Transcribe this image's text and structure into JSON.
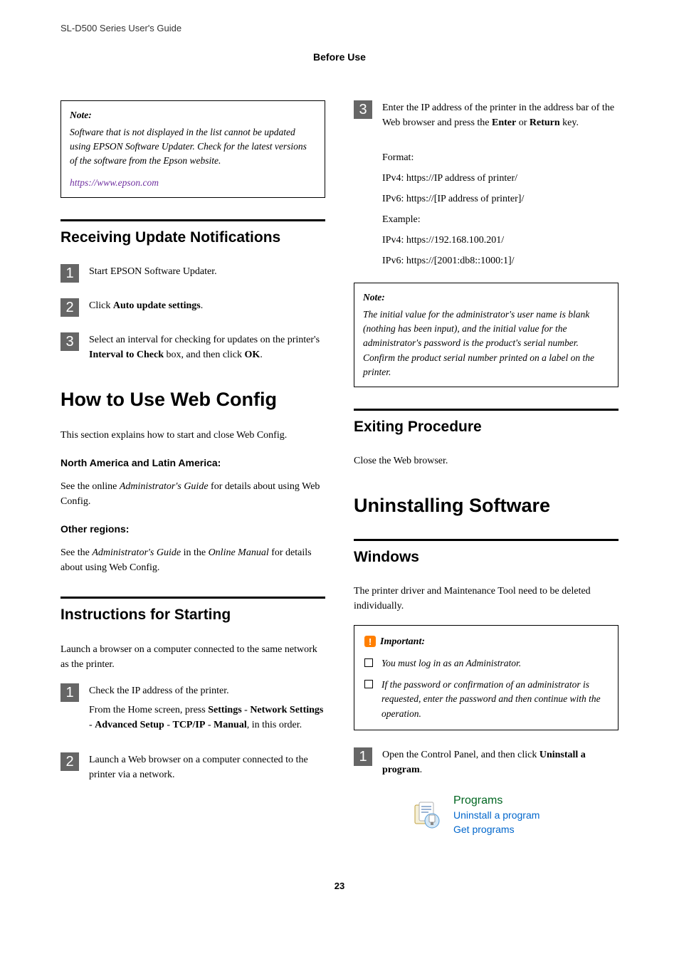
{
  "header": {
    "left": "SL-D500 Series     User's Guide",
    "section": "Before Use"
  },
  "left_col": {
    "note1": {
      "title": "Note:",
      "body": "Software that is not displayed in the list cannot be updated using EPSON Software Updater. Check for the latest versions of the software from the Epson website.",
      "link": "https://www.epson.com"
    },
    "h2_receiving": "Receiving Update Notifications",
    "steps_receiving": [
      {
        "num": "1",
        "html": "Start EPSON Software Updater."
      },
      {
        "num": "2",
        "html": "Click <strong>Auto update settings</strong>."
      },
      {
        "num": "3",
        "html": "Select an interval for checking for updates on the printer's <strong>Interval to Check</strong> box, and then click <strong>OK</strong>."
      }
    ],
    "h1_webconfig": "How to Use Web Config",
    "para_intro": "This section explains how to start and close Web Config.",
    "na_title": "North America and Latin America:",
    "na_body_pre": "See the online ",
    "na_body_em": "Administrator's Guide",
    "na_body_post": " for details about using Web Config.",
    "other_title": "Other regions:",
    "other_body_pre": "See the ",
    "other_body_em1": "Administrator's Guide",
    "other_body_mid": " in the ",
    "other_body_em2": "Online Manual",
    "other_body_post": " for details about using Web Config.",
    "h2_instructions": "Instructions for Starting",
    "para_launch": "Launch a browser on a computer connected to the same network as the printer.",
    "steps_starting": [
      {
        "num": "1",
        "p1": "Check the IP address of the printer.",
        "p2_html": "From the Home screen, press <strong>Settings</strong> - <strong>Network Settings</strong> - <strong>Advanced Setup</strong> - <strong>TCP/IP</strong> - <strong>Manual</strong>, in this order."
      },
      {
        "num": "2",
        "p1": "Launch a Web browser on a computer connected to the printer via a network."
      }
    ]
  },
  "right_col": {
    "step3": {
      "num": "3",
      "p1_html": "Enter the IP address of the printer in the address bar of the Web browser and press the <strong>Enter</strong> or <strong>Return</strong> key.",
      "format_label": "Format:",
      "ipv4_fmt": "IPv4: https://IP address of printer/",
      "ipv6_fmt": "IPv6: https://[IP address of printer]/",
      "example_label": "Example:",
      "ipv4_ex": "IPv4: https://192.168.100.201/",
      "ipv6_ex": "IPv6: https://[2001:db8::1000:1]/"
    },
    "note2": {
      "title": "Note:",
      "body": "The initial value for the administrator's user name is blank (nothing has been input), and the initial value for the administrator's password is the product's serial number. Confirm the product serial number printed on a label on the printer."
    },
    "h2_exiting": "Exiting Procedure",
    "para_close": "Close the Web browser.",
    "h1_uninstall": "Uninstalling Software",
    "h2_windows": "Windows",
    "para_driver": "The printer driver and Maintenance Tool need to be deleted individually.",
    "important": {
      "title": "Important:",
      "items": [
        "You must log in as an Administrator.",
        "If the password or confirmation of an administrator is requested, enter the password and then continue with the operation."
      ]
    },
    "step_open": {
      "num": "1",
      "html": "Open the Control Panel, and then click <strong>Uninstall a program</strong>."
    },
    "programs": {
      "t1": "Programs",
      "t2": "Uninstall a program",
      "t3": "Get programs"
    }
  },
  "footer": {
    "page": "23"
  },
  "colors": {
    "link": "#7030a0",
    "step_bg": "#666666",
    "excl_bg": "#ff7f00",
    "prog_green": "#006621",
    "prog_blue": "#0066cc"
  }
}
